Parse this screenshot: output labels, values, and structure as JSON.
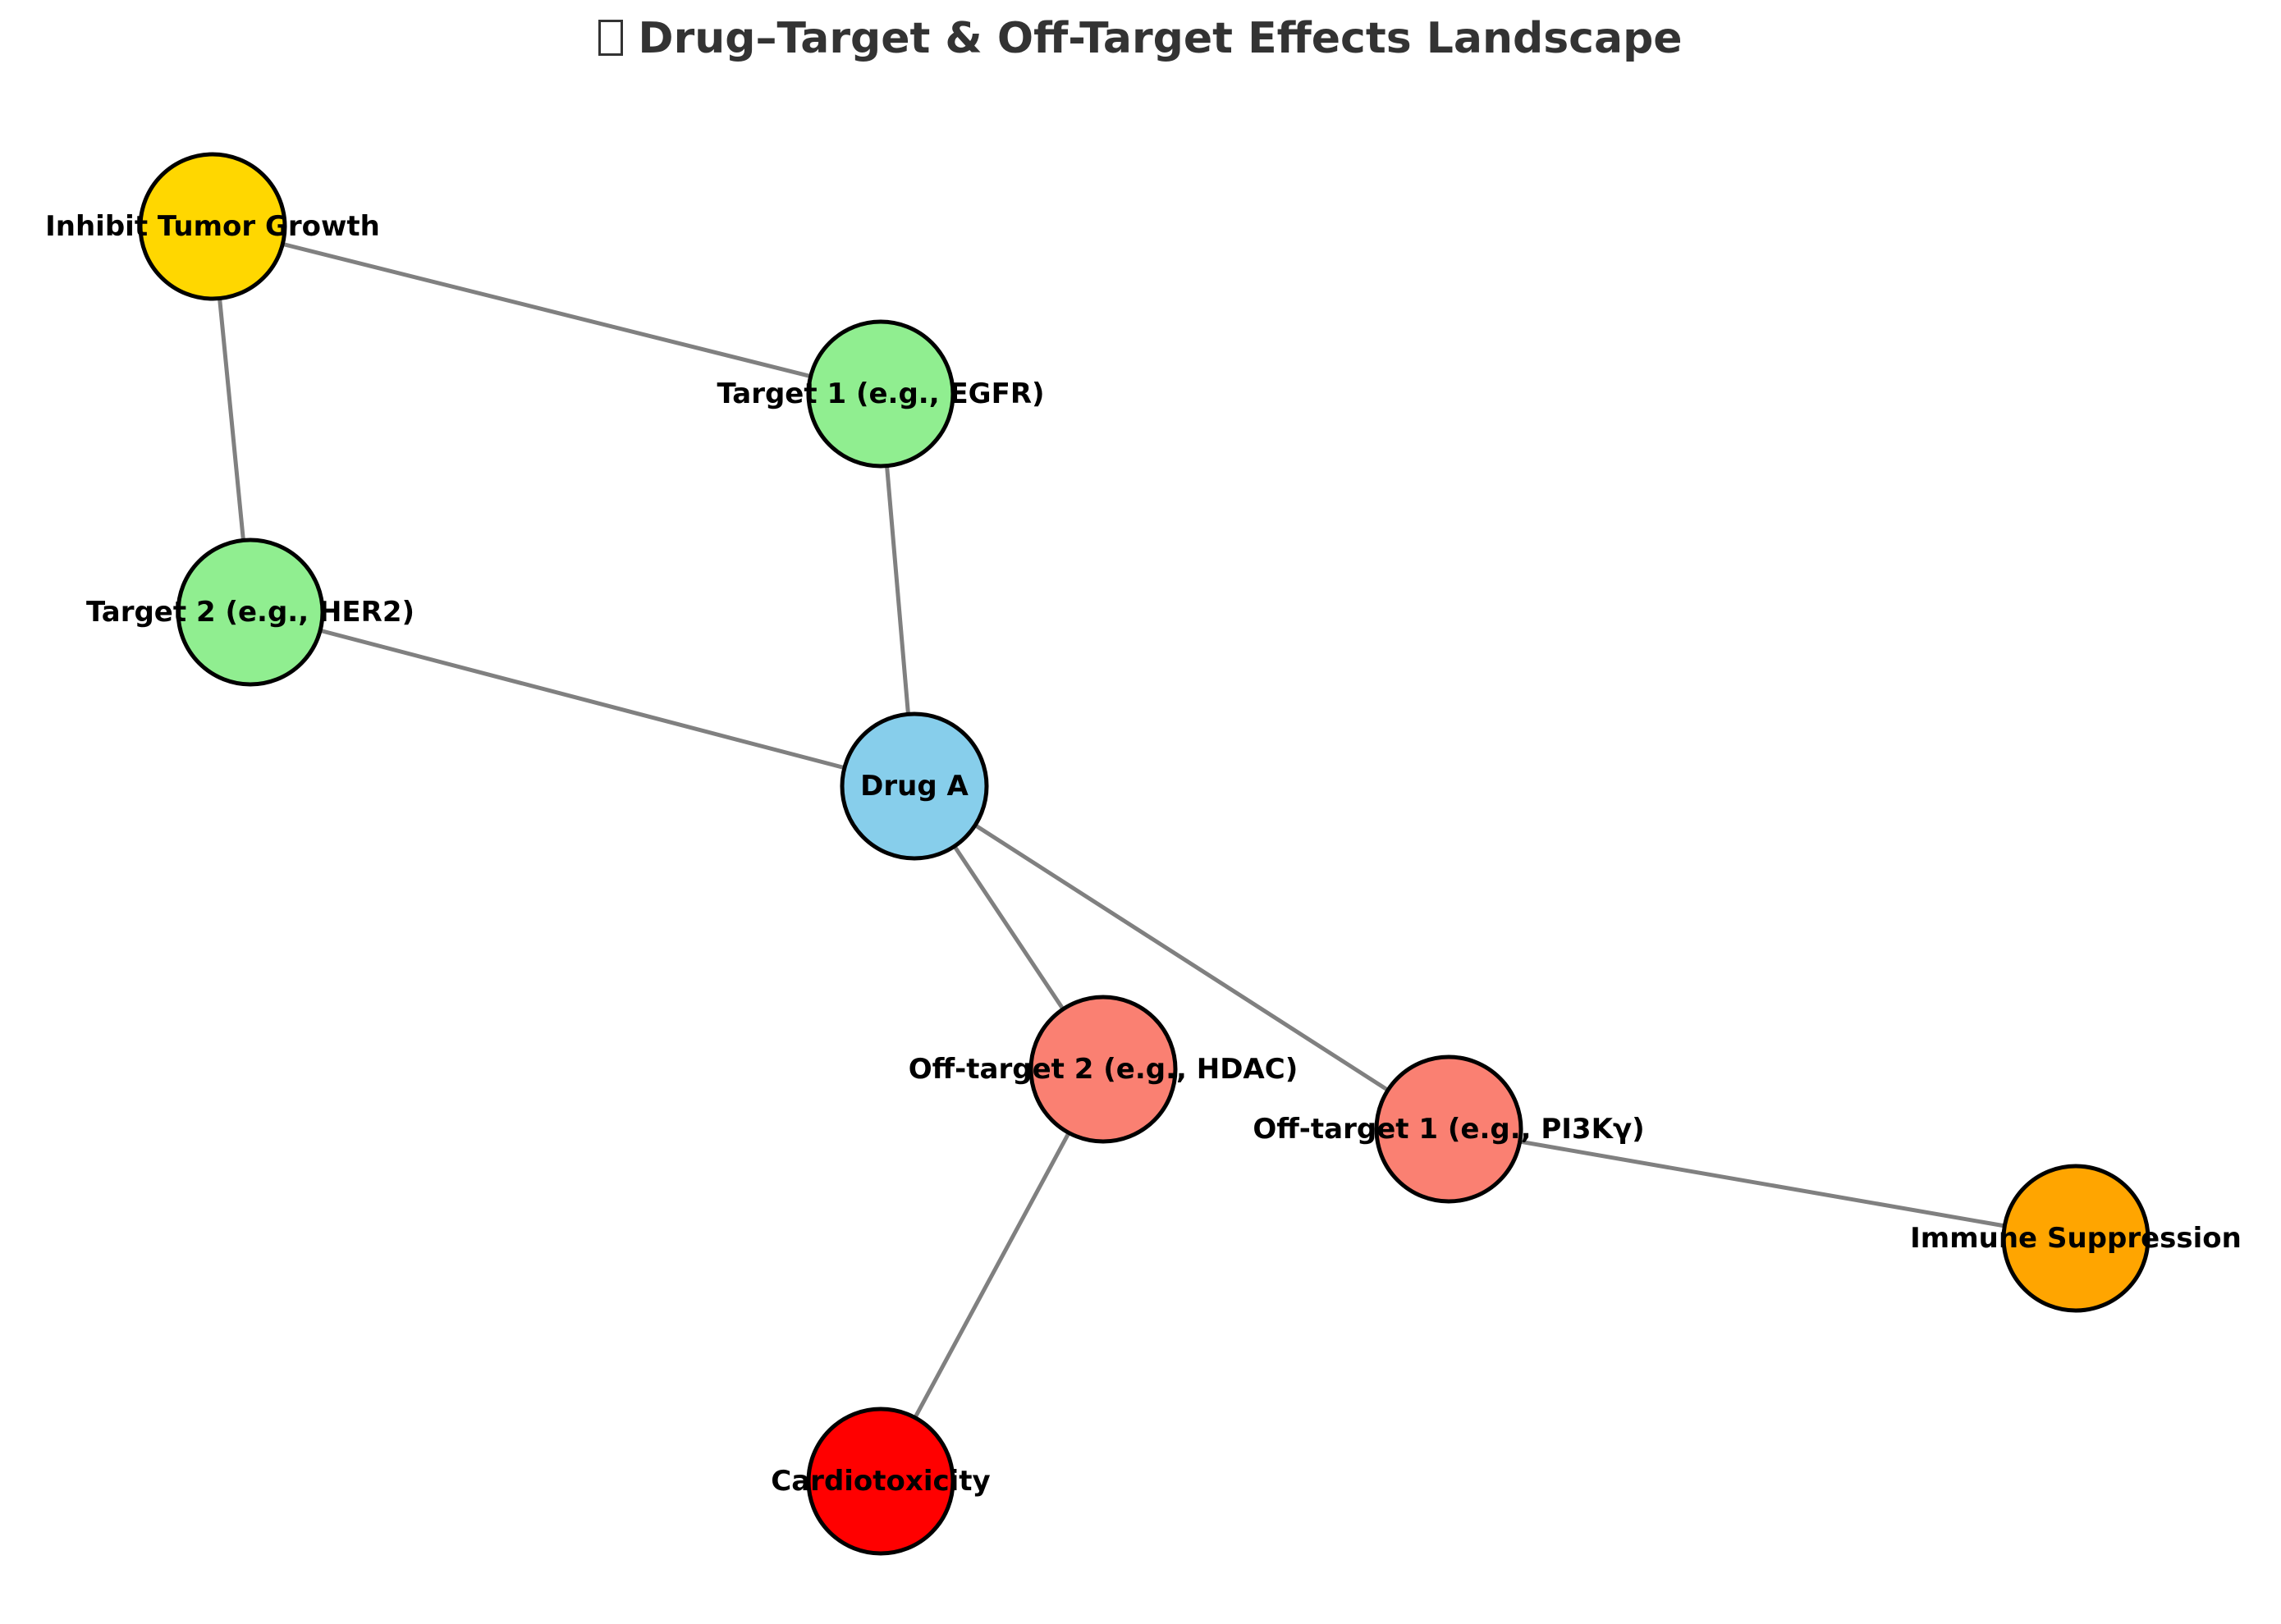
{
  "title": "Drug–Target & Off-Target Effects Landscape",
  "title_icon": "missing-glyph-box",
  "colors": {
    "drug": "#87CEEB",
    "target": "#90EE90",
    "off_target": "#FA8072",
    "therapeutic_effect": "#FFD700",
    "toxic_effect": "#FF0000",
    "side_effect": "#FFA500",
    "edge": "#808080"
  },
  "nodes": [
    {
      "id": "drug_a",
      "label": "Drug A",
      "category": "drug"
    },
    {
      "id": "target1",
      "label": "Target 1 (e.g., EGFR)",
      "category": "target"
    },
    {
      "id": "target2",
      "label": "Target 2 (e.g., HER2)",
      "category": "target"
    },
    {
      "id": "offtarget1",
      "label": "Off-target 1 (e.g., PI3Kγ)",
      "category": "off_target"
    },
    {
      "id": "offtarget2",
      "label": "Off-target 2 (e.g., HDAC)",
      "category": "off_target"
    },
    {
      "id": "tumor",
      "label": "Inhibit Tumor Growth",
      "category": "therapeutic_effect"
    },
    {
      "id": "cardio",
      "label": "Cardiotoxicity",
      "category": "toxic_effect"
    },
    {
      "id": "immune",
      "label": "Immune Suppression",
      "category": "side_effect"
    }
  ],
  "edges": [
    {
      "source": "drug_a",
      "target": "target1"
    },
    {
      "source": "drug_a",
      "target": "target2"
    },
    {
      "source": "drug_a",
      "target": "offtarget1"
    },
    {
      "source": "drug_a",
      "target": "offtarget2"
    },
    {
      "source": "target1",
      "target": "tumor"
    },
    {
      "source": "target2",
      "target": "tumor"
    },
    {
      "source": "offtarget1",
      "target": "immune"
    },
    {
      "source": "offtarget2",
      "target": "cardio"
    }
  ]
}
